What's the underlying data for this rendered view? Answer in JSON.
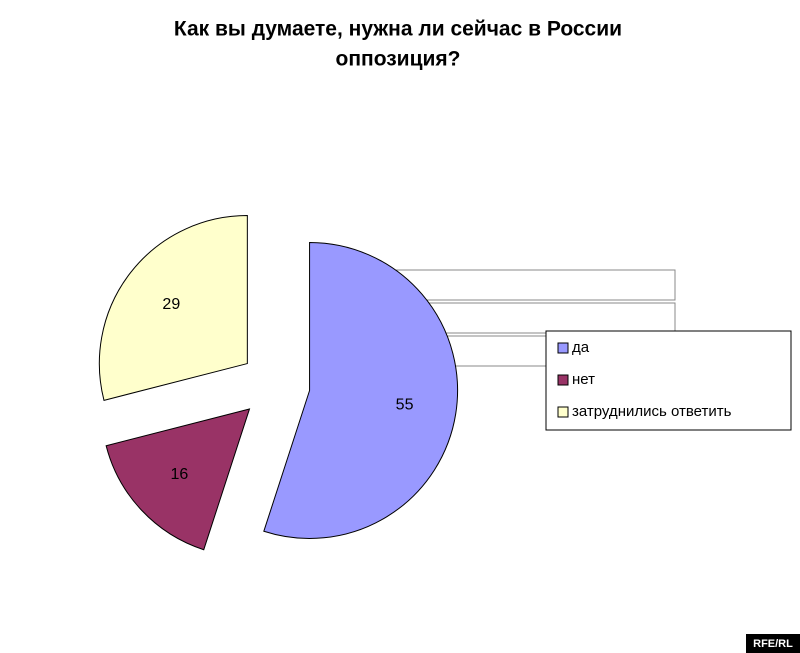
{
  "chart_data": {
    "type": "pie",
    "title_lines": [
      "Как вы думаете, нужна ли сейчас в России",
      "оппозиция?"
    ],
    "categories": [
      "да",
      "нет",
      "затруднились ответить"
    ],
    "values": [
      55,
      16,
      29
    ],
    "colors": [
      "#9999ff",
      "#993366",
      "#ffffcc"
    ],
    "exploded": true,
    "legend": "right",
    "watermark": "RFE/RL"
  }
}
